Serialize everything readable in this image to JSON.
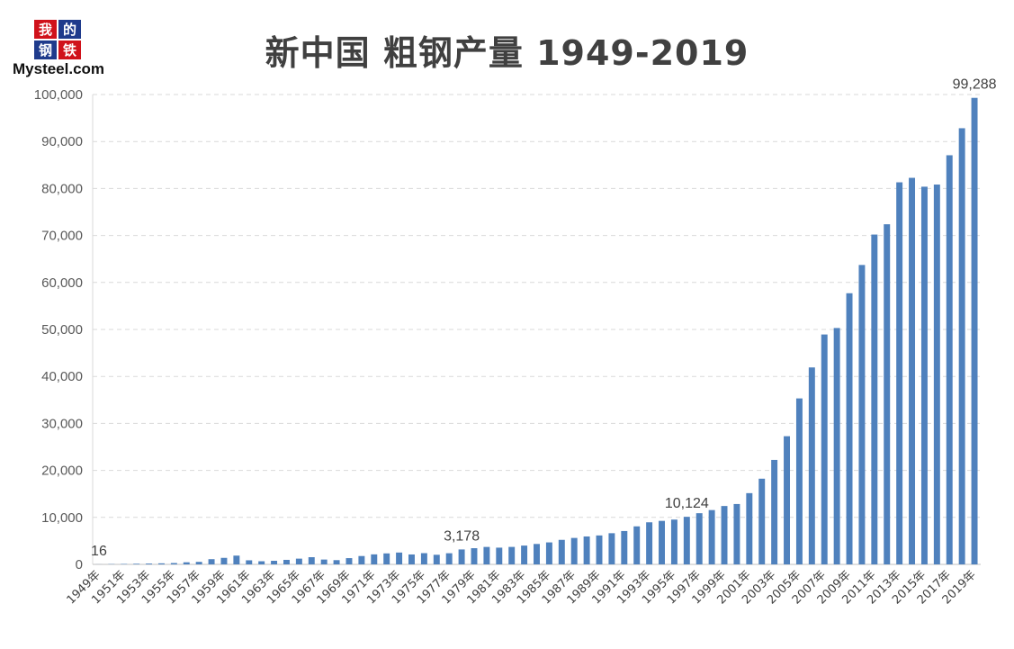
{
  "logo": {
    "tiles": [
      "我",
      "的",
      "钢",
      "铁"
    ],
    "brand": "Mysteel.com",
    "colors": {
      "red": "#d0121b",
      "blue": "#1f3b8c"
    }
  },
  "chart_data": {
    "type": "bar",
    "title": "新中国 粗钢产量 1949-2019",
    "xlabel": "",
    "ylabel": "",
    "ylim": [
      0,
      100000
    ],
    "yticks": [
      "0",
      "10,000",
      "20,000",
      "30,000",
      "40,000",
      "50,000",
      "60,000",
      "70,000",
      "80,000",
      "90,000",
      "100,000"
    ],
    "grid": true,
    "legend": "none",
    "bar_color": "#4f81bd",
    "categories": [
      "1949年",
      "1950年",
      "1951年",
      "1952年",
      "1953年",
      "1954年",
      "1955年",
      "1956年",
      "1957年",
      "1958年",
      "1959年",
      "1960年",
      "1961年",
      "1962年",
      "1963年",
      "1964年",
      "1965年",
      "1966年",
      "1967年",
      "1968年",
      "1969年",
      "1970年",
      "1971年",
      "1972年",
      "1973年",
      "1974年",
      "1975年",
      "1976年",
      "1977年",
      "1978年",
      "1979年",
      "1980年",
      "1981年",
      "1982年",
      "1983年",
      "1984年",
      "1985年",
      "1986年",
      "1987年",
      "1988年",
      "1989年",
      "1990年",
      "1991年",
      "1992年",
      "1993年",
      "1994年",
      "1995年",
      "1996年",
      "1997年",
      "1998年",
      "1999年",
      "2000年",
      "2001年",
      "2002年",
      "2003年",
      "2004年",
      "2005年",
      "2006年",
      "2007年",
      "2008年",
      "2009年",
      "2010年",
      "2011年",
      "2012年",
      "2013年",
      "2014年",
      "2015年",
      "2016年",
      "2017年",
      "2018年",
      "2019年"
    ],
    "values": [
      16,
      61,
      90,
      135,
      177,
      223,
      285,
      447,
      535,
      1108,
      1387,
      1866,
      870,
      667,
      762,
      964,
      1223,
      1532,
      1029,
      904,
      1333,
      1779,
      2132,
      2338,
      2522,
      2112,
      2390,
      2046,
      2374,
      3178,
      3448,
      3712,
      3560,
      3716,
      4002,
      4347,
      4679,
      5221,
      5628,
      5943,
      6159,
      6635,
      7100,
      8094,
      8956,
      9261,
      9536,
      10124,
      10894,
      11559,
      12426,
      12850,
      15163,
      18237,
      22234,
      27280,
      35324,
      41915,
      48929,
      50306,
      57707,
      63723,
      70197,
      72388,
      81314,
      82270,
      80383,
      80837,
      87074,
      92826,
      99288
    ],
    "data_labels": [
      {
        "category": "1949年",
        "text": "16"
      },
      {
        "category": "1978年",
        "text": "3,178"
      },
      {
        "category": "1996年",
        "text": "10,124"
      },
      {
        "category": "2019年",
        "text": "99,288"
      }
    ]
  }
}
